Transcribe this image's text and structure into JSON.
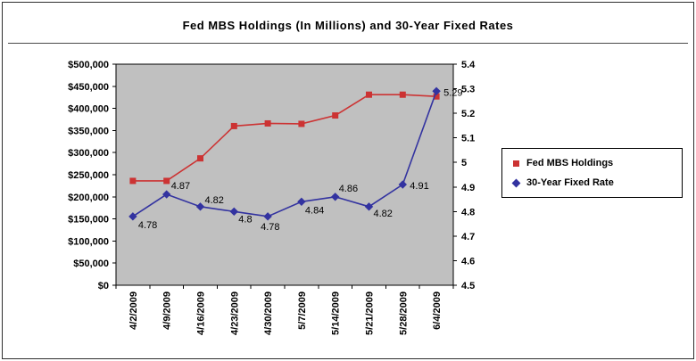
{
  "frame": {
    "background": "#ffffff",
    "border_color": "#2e2e2e"
  },
  "chart_data": {
    "type": "line",
    "title": "Fed MBS Holdings (In Millions) and 30-Year Fixed Rates",
    "categories": [
      "4/2/2009",
      "4/9/2009",
      "4/16/2009",
      "4/23/2009",
      "4/30/2009",
      "5/7/2009",
      "5/14/2009",
      "5/21/2009",
      "5/28/2009",
      "6/4/2009"
    ],
    "series": [
      {
        "name": "Fed MBS Holdings",
        "axis": "left",
        "color": "#cc3333",
        "marker": "square",
        "values": [
          236000,
          236000,
          287000,
          360000,
          366000,
          365000,
          384000,
          431000,
          431000,
          427000
        ]
      },
      {
        "name": "30-Year Fixed Rate",
        "axis": "right",
        "color": "#3333a0",
        "marker": "diamond",
        "values": [
          4.78,
          4.87,
          4.82,
          4.8,
          4.78,
          4.84,
          4.86,
          4.82,
          4.91,
          5.29
        ],
        "data_labels": [
          "4.78",
          "4.87",
          "4.82",
          "4.8",
          "4.78",
          "4.84",
          "4.86",
          "4.82",
          "4.91",
          "5.29"
        ]
      }
    ],
    "left_axis": {
      "min": 0,
      "max": 500000,
      "step": 50000,
      "tick_labels": [
        "$0",
        "$50,000",
        "$100,000",
        "$150,000",
        "$200,000",
        "$250,000",
        "$300,000",
        "$350,000",
        "$400,000",
        "$450,000",
        "$500,000"
      ]
    },
    "right_axis": {
      "min": 4.5,
      "max": 5.4,
      "step": 0.1,
      "tick_labels": [
        "4.5",
        "4.6",
        "4.7",
        "4.8",
        "4.9",
        "5",
        "5.1",
        "5.2",
        "5.3",
        "5.4"
      ]
    },
    "plot_background": "#c0c0c0",
    "gridlines": false,
    "legend_position": "right"
  }
}
